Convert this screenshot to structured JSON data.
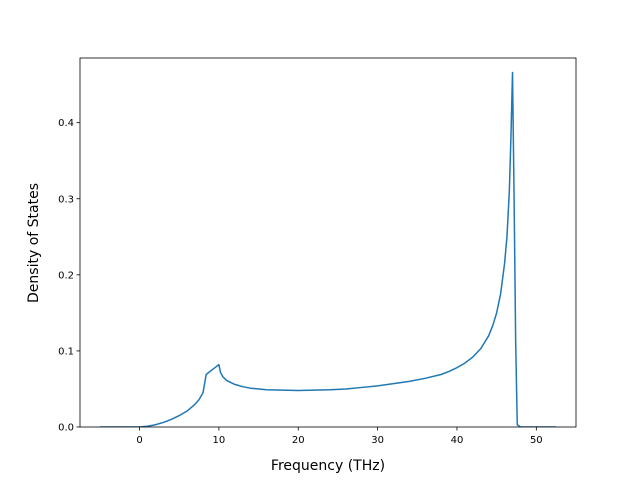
{
  "chart_data": {
    "type": "line",
    "title": "",
    "xlabel": "Frequency (THz)",
    "ylabel": "Density of States",
    "xlim": [
      -7.5,
      55
    ],
    "ylim": [
      0,
      0.485
    ],
    "xticks": [
      0,
      10,
      20,
      30,
      40,
      50
    ],
    "xtick_labels": [
      "0",
      "10",
      "20",
      "30",
      "40",
      "50"
    ],
    "yticks": [
      0,
      0.1,
      0.2,
      0.3,
      0.4
    ],
    "ytick_labels": [
      "0.0",
      "0.1",
      "0.2",
      "0.3",
      "0.4"
    ],
    "grid": false,
    "legend": "none",
    "series": [
      {
        "color": "#1f77b4",
        "x": [
          -5,
          -3,
          -1,
          0,
          1,
          2,
          3,
          4,
          5,
          6,
          7,
          7.5,
          8,
          8.4,
          9,
          9.5,
          10,
          10.2,
          10.5,
          11,
          12,
          13,
          14,
          16,
          18,
          20,
          22,
          24,
          26,
          28,
          30,
          32,
          34,
          36,
          38,
          39,
          40,
          41,
          42,
          43,
          44,
          44.5,
          45,
          45.5,
          46,
          46.3,
          46.6,
          46.8,
          47.0,
          47.2,
          47.4,
          47.6,
          48,
          49,
          50,
          51,
          52.5
        ],
        "y": [
          0,
          0,
          0,
          0,
          0.001,
          0.003,
          0.006,
          0.01,
          0.015,
          0.021,
          0.03,
          0.036,
          0.045,
          0.069,
          0.074,
          0.078,
          0.082,
          0.072,
          0.066,
          0.061,
          0.056,
          0.053,
          0.051,
          0.049,
          0.0485,
          0.048,
          0.0485,
          0.049,
          0.05,
          0.052,
          0.054,
          0.057,
          0.06,
          0.064,
          0.069,
          0.073,
          0.078,
          0.084,
          0.092,
          0.103,
          0.12,
          0.133,
          0.15,
          0.175,
          0.215,
          0.25,
          0.31,
          0.38,
          0.466,
          0.3,
          0.11,
          0.003,
          0,
          0,
          0,
          0,
          0
        ]
      }
    ]
  }
}
